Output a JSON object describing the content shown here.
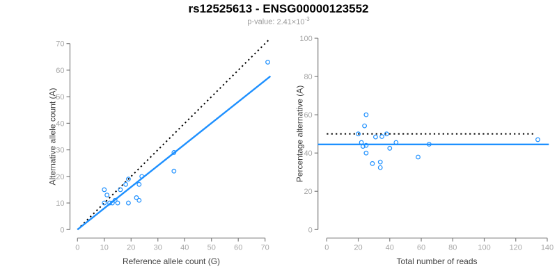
{
  "header": {
    "title": "rs12525613 - ENSG00000123552",
    "subtitle_label": "p-value:",
    "subtitle_value_base": "2.41×10",
    "subtitle_value_exponent": "-3"
  },
  "colors": {
    "accent": "#1E90FF",
    "dotted_line": "#000000",
    "axis": "#7d7d7d",
    "tick_label": "#a6a6a6",
    "axis_title": "#404040",
    "subtitle": "#999999"
  },
  "chart_data": [
    {
      "type": "scatter",
      "name": "allele-counts",
      "xlabel": "Reference allele count (G)",
      "ylabel": "Alternative allele count (A)",
      "xlim": [
        0,
        70
      ],
      "ylim": [
        0,
        70
      ],
      "xticks": [
        0,
        10,
        20,
        30,
        40,
        50,
        60,
        70
      ],
      "yticks": [
        0,
        10,
        20,
        30,
        40,
        50,
        60,
        70
      ],
      "grid": false,
      "legend": "none",
      "points": [
        [
          10,
          10
        ],
        [
          10,
          15
        ],
        [
          11,
          13
        ],
        [
          12,
          10
        ],
        [
          13,
          10
        ],
        [
          14,
          11
        ],
        [
          15,
          10
        ],
        [
          16,
          15
        ],
        [
          18,
          17
        ],
        [
          19,
          10
        ],
        [
          19,
          19
        ],
        [
          22,
          12
        ],
        [
          23,
          11
        ],
        [
          23,
          17
        ],
        [
          24,
          20
        ],
        [
          36,
          22
        ],
        [
          36,
          29
        ],
        [
          71,
          63
        ]
      ],
      "lines": [
        {
          "name": "identity-line",
          "style": "dotted",
          "color": "#000000",
          "from": [
            0,
            0
          ],
          "to": [
            71.5,
            71.5
          ]
        },
        {
          "name": "fit-line",
          "style": "solid",
          "color": "#1E90FF",
          "from": [
            0,
            0
          ],
          "to": [
            72,
            57.7
          ]
        }
      ]
    },
    {
      "type": "scatter",
      "name": "percentage-alternative",
      "xlabel": "Total number of reads",
      "ylabel": "Percentage alternative (A)",
      "xlim": [
        0,
        140
      ],
      "ylim": [
        0,
        100
      ],
      "xticks": [
        0,
        20,
        40,
        60,
        80,
        100,
        120,
        140
      ],
      "yticks": [
        0,
        20,
        40,
        60,
        80,
        100
      ],
      "grid": false,
      "legend": "none",
      "points": [
        [
          20,
          50
        ],
        [
          25,
          60
        ],
        [
          24,
          54.2
        ],
        [
          22,
          45.5
        ],
        [
          23,
          43.5
        ],
        [
          25,
          44
        ],
        [
          25,
          40
        ],
        [
          31,
          48.4
        ],
        [
          35,
          48.6
        ],
        [
          29,
          34.5
        ],
        [
          38,
          50
        ],
        [
          34,
          35.3
        ],
        [
          34,
          32.4
        ],
        [
          40,
          42.5
        ],
        [
          44,
          45.5
        ],
        [
          58,
          37.9
        ],
        [
          65,
          44.6
        ],
        [
          134,
          47
        ]
      ],
      "lines": [
        {
          "name": "expected-50pct-line",
          "style": "dotted",
          "color": "#000000",
          "from": [
            0,
            50
          ],
          "to": [
            131.5,
            50
          ]
        },
        {
          "name": "mean-percentage-line",
          "style": "solid",
          "color": "#1E90FF",
          "from": [
            -5.6,
            44.5
          ],
          "to": [
            141,
            44.5
          ]
        }
      ]
    }
  ]
}
